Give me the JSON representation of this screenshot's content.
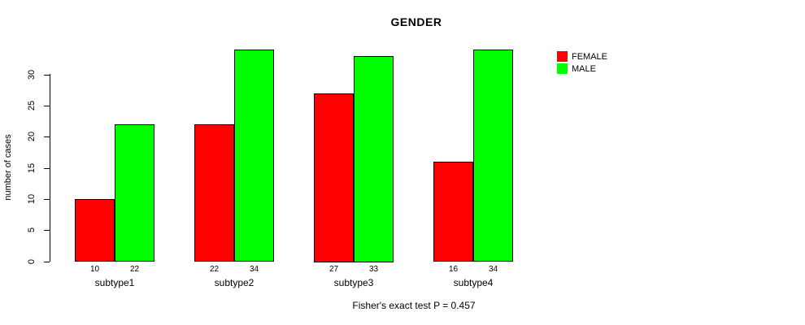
{
  "chart_data": {
    "type": "bar",
    "title": "GENDER",
    "ylabel": "number of cases",
    "xlabel": "",
    "categories": [
      "subtype1",
      "subtype2",
      "subtype3",
      "subtype4"
    ],
    "series": [
      {
        "name": "FEMALE",
        "color": "#ff0000",
        "values": [
          10,
          22,
          27,
          16
        ]
      },
      {
        "name": "MALE",
        "color": "#00ff00",
        "values": [
          22,
          34,
          33,
          34
        ]
      }
    ],
    "yticks": [
      0,
      5,
      10,
      15,
      20,
      25,
      30
    ],
    "ylim": [
      0,
      34
    ],
    "grid": false,
    "bar_value_labels": true,
    "legend_position": "top-right-outside",
    "caption": "Fisher's exact test P = 0.457",
    "background_color": "#ffffff",
    "axis_color": "#000000"
  }
}
